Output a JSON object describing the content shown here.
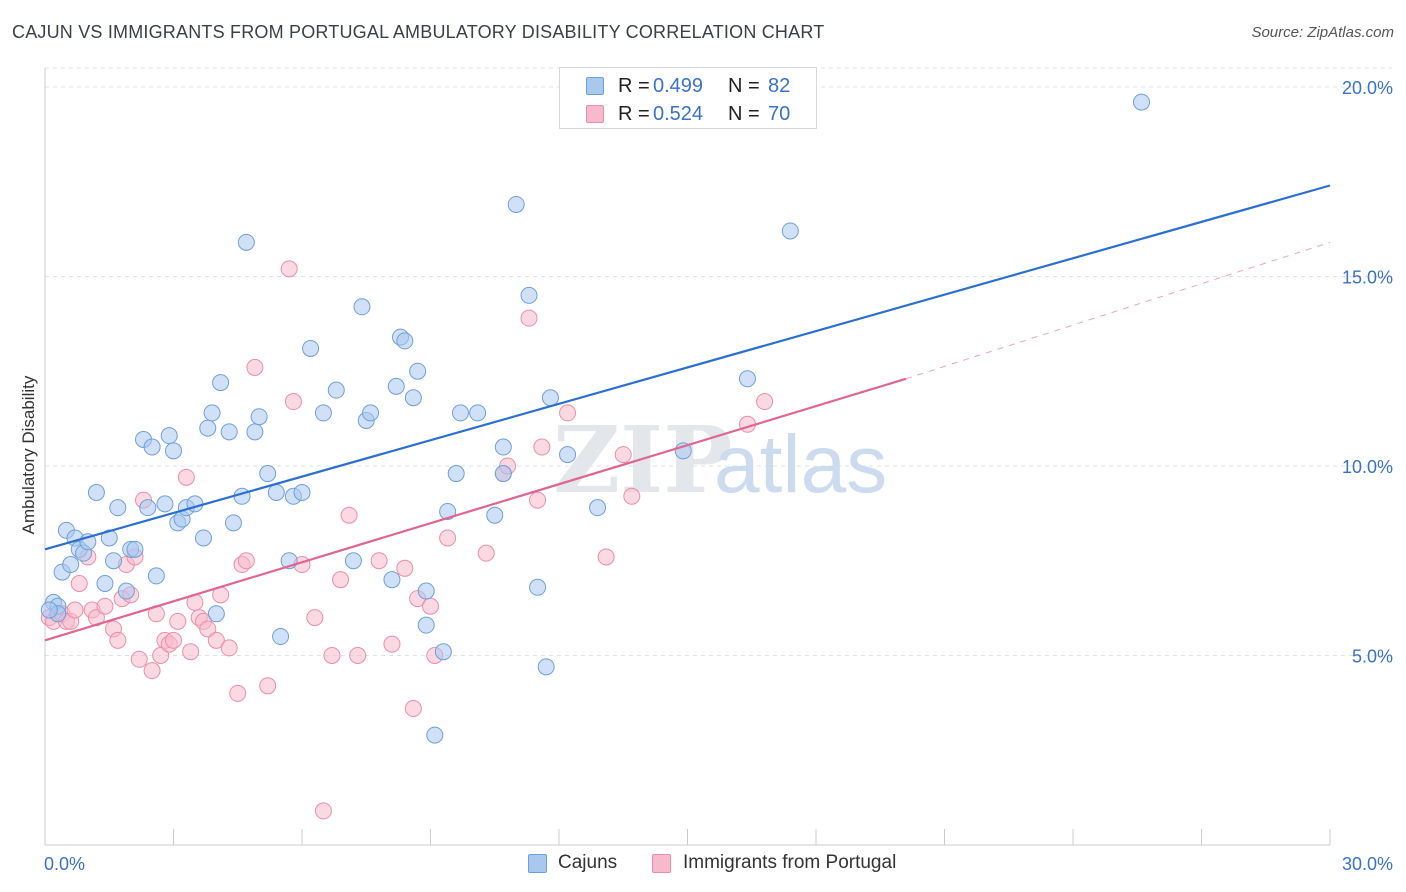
{
  "title": "CAJUN VS IMMIGRANTS FROM PORTUGAL AMBULATORY DISABILITY CORRELATION CHART",
  "source": "Source: ZipAtlas.com",
  "watermark": {
    "zip": "ZIP",
    "atlas": "atlas"
  },
  "legend": {
    "r_label": "R =",
    "n_label": "N =",
    "cajuns": {
      "r": "0.499",
      "n": "82"
    },
    "portugal": {
      "r": "0.524",
      "n": "70"
    }
  },
  "colors": {
    "cajuns_fill": "#a9c8f0",
    "cajuns_stroke": "#6f9fd8",
    "cajuns_line": "#2b6fcf",
    "portugal_fill": "#f7b9cc",
    "portugal_stroke": "#eb8eab",
    "portugal_line": "#e0658f",
    "tick_label": "#3a72c6",
    "grid": "#dde0e5"
  },
  "chart_data": {
    "type": "scatter",
    "title": "CAJUN VS IMMIGRANTS FROM PORTUGAL AMBULATORY DISABILITY CORRELATION CHART",
    "xlabel": "",
    "ylabel": "Ambulatory Disability",
    "xlim": [
      0,
      30
    ],
    "ylim": [
      0,
      20.5
    ],
    "x_tick_labels": [
      "0.0%",
      "30.0%"
    ],
    "y_ticks": [
      5,
      10,
      15,
      20
    ],
    "y_tick_labels": [
      "5.0%",
      "10.0%",
      "15.0%",
      "20.0%"
    ],
    "grid": true,
    "legend_position": "top-center",
    "series": [
      {
        "name": "Cajuns",
        "trend": {
          "x": [
            0,
            30
          ],
          "y": [
            7.8,
            17.4
          ]
        },
        "points": [
          [
            0.2,
            6.4
          ],
          [
            0.3,
            6.3
          ],
          [
            0.3,
            6.1
          ],
          [
            0.4,
            7.2
          ],
          [
            0.5,
            8.3
          ],
          [
            0.6,
            7.4
          ],
          [
            0.7,
            8.1
          ],
          [
            0.8,
            7.8
          ],
          [
            0.9,
            7.7
          ],
          [
            1.0,
            8.0
          ],
          [
            1.2,
            9.3
          ],
          [
            1.4,
            6.9
          ],
          [
            1.5,
            8.1
          ],
          [
            1.6,
            7.5
          ],
          [
            1.7,
            8.9
          ],
          [
            1.9,
            6.7
          ],
          [
            2.0,
            7.8
          ],
          [
            2.1,
            7.8
          ],
          [
            2.3,
            10.7
          ],
          [
            2.4,
            8.9
          ],
          [
            2.5,
            10.5
          ],
          [
            2.6,
            7.1
          ],
          [
            2.8,
            9.0
          ],
          [
            2.9,
            10.8
          ],
          [
            3.0,
            10.4
          ],
          [
            3.1,
            8.5
          ],
          [
            3.2,
            8.6
          ],
          [
            3.3,
            8.9
          ],
          [
            3.5,
            9.0
          ],
          [
            3.7,
            8.1
          ],
          [
            3.8,
            11.0
          ],
          [
            3.9,
            11.4
          ],
          [
            4.0,
            6.1
          ],
          [
            4.1,
            12.2
          ],
          [
            4.3,
            10.9
          ],
          [
            4.4,
            8.5
          ],
          [
            4.6,
            9.2
          ],
          [
            4.7,
            15.9
          ],
          [
            4.9,
            10.9
          ],
          [
            5.0,
            11.3
          ],
          [
            5.2,
            9.8
          ],
          [
            5.4,
            9.3
          ],
          [
            5.5,
            5.5
          ],
          [
            5.7,
            7.5
          ],
          [
            5.8,
            9.2
          ],
          [
            6.0,
            9.3
          ],
          [
            6.2,
            13.1
          ],
          [
            6.5,
            11.4
          ],
          [
            6.8,
            12.0
          ],
          [
            7.2,
            7.5
          ],
          [
            7.4,
            14.2
          ],
          [
            7.5,
            11.2
          ],
          [
            7.6,
            11.4
          ],
          [
            8.1,
            7.0
          ],
          [
            8.2,
            12.1
          ],
          [
            8.3,
            13.4
          ],
          [
            8.4,
            13.3
          ],
          [
            8.6,
            11.8
          ],
          [
            8.7,
            12.5
          ],
          [
            8.9,
            6.7
          ],
          [
            8.9,
            5.8
          ],
          [
            9.1,
            2.9
          ],
          [
            9.3,
            5.1
          ],
          [
            9.4,
            8.8
          ],
          [
            9.6,
            9.8
          ],
          [
            9.7,
            11.4
          ],
          [
            10.1,
            11.4
          ],
          [
            10.5,
            8.7
          ],
          [
            10.7,
            10.5
          ],
          [
            10.7,
            9.8
          ],
          [
            11.0,
            16.9
          ],
          [
            11.3,
            14.5
          ],
          [
            11.5,
            6.8
          ],
          [
            11.7,
            4.7
          ],
          [
            11.8,
            11.8
          ],
          [
            12.2,
            10.3
          ],
          [
            12.9,
            8.9
          ],
          [
            14.9,
            10.4
          ],
          [
            16.4,
            12.3
          ],
          [
            17.4,
            16.2
          ],
          [
            25.6,
            19.6
          ],
          [
            0.1,
            6.2
          ]
        ]
      },
      {
        "name": "Immigrants from Portugal",
        "trend": {
          "x": [
            0,
            20.1
          ],
          "y": [
            5.4,
            12.3
          ]
        },
        "trend_dashed": {
          "x": [
            20.1,
            30
          ],
          "y": [
            12.3,
            15.9
          ]
        },
        "points": [
          [
            0.1,
            6.0
          ],
          [
            0.2,
            5.9
          ],
          [
            0.3,
            6.1
          ],
          [
            0.4,
            6.1
          ],
          [
            0.5,
            5.9
          ],
          [
            0.6,
            5.9
          ],
          [
            0.7,
            6.2
          ],
          [
            0.8,
            6.9
          ],
          [
            1.0,
            7.6
          ],
          [
            1.1,
            6.2
          ],
          [
            1.2,
            6.0
          ],
          [
            1.4,
            6.3
          ],
          [
            1.6,
            5.7
          ],
          [
            1.7,
            5.4
          ],
          [
            1.8,
            6.5
          ],
          [
            1.9,
            7.4
          ],
          [
            2.0,
            6.6
          ],
          [
            2.1,
            7.6
          ],
          [
            2.2,
            4.9
          ],
          [
            2.3,
            9.1
          ],
          [
            2.5,
            4.6
          ],
          [
            2.6,
            6.1
          ],
          [
            2.7,
            5.0
          ],
          [
            2.8,
            5.4
          ],
          [
            2.9,
            5.3
          ],
          [
            3.0,
            5.4
          ],
          [
            3.1,
            5.9
          ],
          [
            3.3,
            9.7
          ],
          [
            3.4,
            5.1
          ],
          [
            3.5,
            6.4
          ],
          [
            3.6,
            6.0
          ],
          [
            3.7,
            5.9
          ],
          [
            3.8,
            5.7
          ],
          [
            4.0,
            5.4
          ],
          [
            4.1,
            6.6
          ],
          [
            4.3,
            5.2
          ],
          [
            4.5,
            4.0
          ],
          [
            4.6,
            7.4
          ],
          [
            4.7,
            7.5
          ],
          [
            4.9,
            12.6
          ],
          [
            5.2,
            4.2
          ],
          [
            5.7,
            15.2
          ],
          [
            5.8,
            11.7
          ],
          [
            6.0,
            7.4
          ],
          [
            6.3,
            6.0
          ],
          [
            6.5,
            0.9
          ],
          [
            6.7,
            5.0
          ],
          [
            6.9,
            7.0
          ],
          [
            7.1,
            8.7
          ],
          [
            7.3,
            5.0
          ],
          [
            7.8,
            7.5
          ],
          [
            8.1,
            5.3
          ],
          [
            8.4,
            7.3
          ],
          [
            8.6,
            3.6
          ],
          [
            8.7,
            6.5
          ],
          [
            9.0,
            6.3
          ],
          [
            9.1,
            5.0
          ],
          [
            9.4,
            8.1
          ],
          [
            10.3,
            7.7
          ],
          [
            10.7,
            9.8
          ],
          [
            10.8,
            10.0
          ],
          [
            11.3,
            13.9
          ],
          [
            11.5,
            9.1
          ],
          [
            11.6,
            10.5
          ],
          [
            12.2,
            11.4
          ],
          [
            13.1,
            7.6
          ],
          [
            13.5,
            10.3
          ],
          [
            13.7,
            9.2
          ],
          [
            16.4,
            11.1
          ],
          [
            16.8,
            11.7
          ]
        ]
      }
    ]
  }
}
